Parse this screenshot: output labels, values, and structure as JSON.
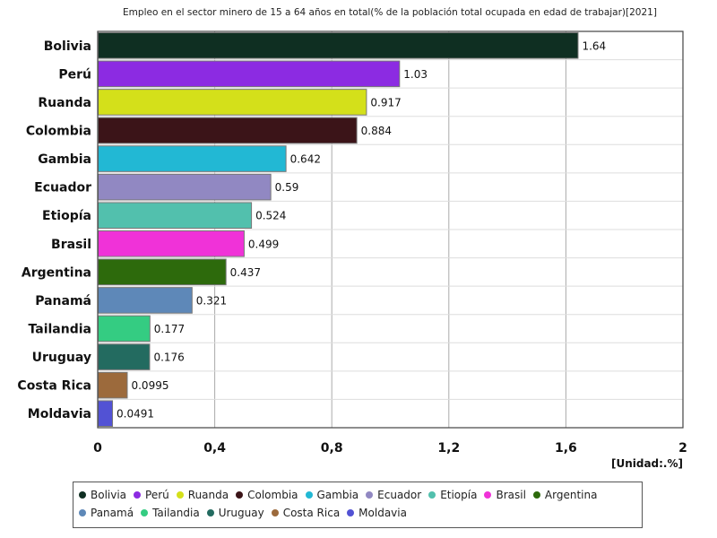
{
  "chart_data": {
    "type": "bar",
    "orientation": "horizontal",
    "title": "Empleo en el sector minero de 15 a 64 años en total(% de la población total ocupada en edad de trabajar)[2021]",
    "unit_label": "[Unidad:.%]",
    "xlim": [
      0,
      2
    ],
    "grid": true,
    "x_ticks": [
      "0",
      "0,4",
      "0,8",
      "1,2",
      "1,6",
      "2"
    ],
    "x_tick_values": [
      0,
      0.4,
      0.8,
      1.2,
      1.6,
      2
    ],
    "legend_position": "bottom",
    "categories": [
      "Bolivia",
      "Perú",
      "Ruanda",
      "Colombia",
      "Gambia",
      "Ecuador",
      "Etiopía",
      "Brasil",
      "Argentina",
      "Panamá",
      "Tailandia",
      "Uruguay",
      "Costa Rica",
      "Moldavia"
    ],
    "values": [
      1.64,
      1.03,
      0.917,
      0.884,
      0.642,
      0.59,
      0.524,
      0.499,
      0.437,
      0.321,
      0.177,
      0.176,
      0.0995,
      0.0491
    ],
    "value_labels": [
      "1.64",
      "1.03",
      "0.917",
      "0.884",
      "0.642",
      "0.59",
      "0.524",
      "0.499",
      "0.437",
      "0.321",
      "0.177",
      "0.176",
      "0.0995",
      "0.0491"
    ],
    "colors": [
      "#0f2f22",
      "#8c2be2",
      "#d4e01a",
      "#3b1418",
      "#22b8d4",
      "#9188c2",
      "#52c0ad",
      "#f032d8",
      "#2d6a0c",
      "#5e88b8",
      "#34cc82",
      "#236b60",
      "#9c6a3c",
      "#5252d4"
    ]
  }
}
